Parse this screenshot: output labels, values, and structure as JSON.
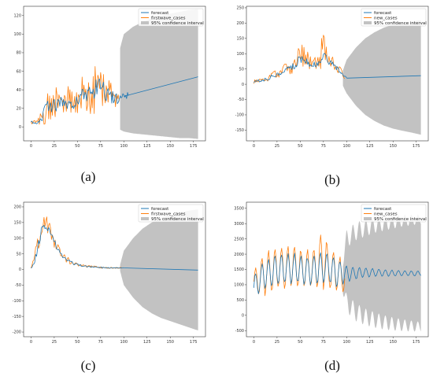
{
  "chart_data": [
    {
      "caption": "(a)",
      "type": "line",
      "xlim": [
        -8,
        188
      ],
      "ylim": [
        -15,
        130
      ],
      "xticks": [
        0,
        25,
        50,
        75,
        100,
        125,
        150,
        175
      ],
      "yticks": [
        0,
        20,
        40,
        60,
        80,
        100,
        120
      ],
      "legend_position": "top-right",
      "legend": [
        "forecast",
        "firstwave_cases",
        "95% confidence interval"
      ],
      "series": [
        {
          "name": "firstwave_cases",
          "color": "#ff7f0e",
          "style": "noisy",
          "x": [
            0,
            5,
            10,
            15,
            20,
            25,
            30,
            35,
            40,
            45,
            50,
            55,
            60,
            65,
            70,
            75,
            80,
            85,
            90,
            95
          ],
          "values": [
            5,
            4,
            8,
            18,
            26,
            24,
            28,
            26,
            30,
            28,
            32,
            34,
            38,
            36,
            42,
            48,
            36,
            34,
            32,
            30
          ],
          "amplitude": [
            3,
            4,
            8,
            15,
            20,
            18,
            16,
            14,
            16,
            14,
            18,
            20,
            26,
            24,
            28,
            26,
            20,
            16,
            12,
            10
          ]
        },
        {
          "name": "forecast",
          "color": "#1f77b4",
          "style": "noisy",
          "x": [
            0,
            5,
            10,
            15,
            20,
            25,
            30,
            35,
            40,
            45,
            50,
            55,
            60,
            65,
            70,
            75,
            80,
            85,
            90,
            95,
            100,
            105
          ],
          "values": [
            5,
            5,
            8,
            17,
            24,
            23,
            26,
            25,
            28,
            26,
            30,
            32,
            36,
            34,
            40,
            44,
            36,
            33,
            31,
            30,
            33,
            35
          ],
          "amplitude": [
            2,
            2,
            4,
            7,
            8,
            8,
            7,
            7,
            8,
            7,
            9,
            9,
            10,
            10,
            11,
            10,
            9,
            7,
            6,
            5,
            5,
            3
          ]
        },
        {
          "name": "forecast",
          "color": "#1f77b4",
          "style": "line",
          "x": [
            100,
            180
          ],
          "values": [
            33,
            54
          ]
        }
      ],
      "confidence_interval": {
        "color": "#c2c2c2",
        "x": [
          96,
          100,
          110,
          120,
          130,
          140,
          150,
          160,
          170,
          180
        ],
        "upper": [
          85,
          100,
          108,
          113,
          117,
          120,
          122,
          124,
          126,
          127
        ],
        "lower": [
          -3,
          -5,
          -7,
          -8,
          -9,
          -10,
          -11,
          -12,
          -12,
          -13
        ]
      }
    },
    {
      "caption": "(b)",
      "type": "line",
      "xlim": [
        -8,
        188
      ],
      "ylim": [
        -185,
        255
      ],
      "xticks": [
        0,
        25,
        50,
        75,
        100,
        125,
        150,
        175
      ],
      "yticks": [
        -150,
        -100,
        -50,
        0,
        50,
        100,
        150,
        200,
        250
      ],
      "legend_position": "top-right",
      "legend": [
        "forecast",
        "new_cases",
        "95% confidence interval"
      ],
      "series": [
        {
          "name": "new_cases",
          "color": "#ff7f0e",
          "style": "noisy",
          "x": [
            0,
            5,
            10,
            15,
            20,
            25,
            30,
            35,
            40,
            45,
            50,
            55,
            60,
            65,
            70,
            75,
            80,
            85,
            90,
            95,
            98
          ],
          "values": [
            8,
            12,
            15,
            20,
            28,
            35,
            42,
            50,
            55,
            70,
            95,
            90,
            70,
            68,
            75,
            120,
            80,
            70,
            55,
            35,
            25
          ],
          "amplitude": [
            6,
            8,
            10,
            12,
            14,
            16,
            18,
            20,
            22,
            28,
            45,
            35,
            25,
            25,
            30,
            70,
            30,
            25,
            18,
            12,
            8
          ]
        },
        {
          "name": "forecast",
          "color": "#1f77b4",
          "style": "noisy",
          "x": [
            0,
            5,
            10,
            15,
            20,
            25,
            30,
            35,
            40,
            45,
            50,
            55,
            60,
            65,
            70,
            75,
            80,
            85,
            90,
            95,
            100
          ],
          "values": [
            8,
            11,
            14,
            19,
            26,
            33,
            40,
            48,
            53,
            65,
            85,
            82,
            66,
            64,
            70,
            100,
            75,
            66,
            52,
            33,
            22
          ],
          "amplitude": [
            3,
            4,
            5,
            6,
            7,
            8,
            9,
            10,
            10,
            12,
            14,
            12,
            10,
            10,
            11,
            14,
            10,
            9,
            7,
            5,
            3
          ]
        },
        {
          "name": "forecast",
          "color": "#1f77b4",
          "style": "line",
          "x": [
            100,
            180
          ],
          "values": [
            20,
            28
          ]
        }
      ],
      "confidence_interval": {
        "color": "#c2c2c2",
        "x": [
          96,
          100,
          110,
          120,
          130,
          140,
          150,
          160,
          170,
          180
        ],
        "upper": [
          45,
          80,
          120,
          150,
          170,
          185,
          195,
          200,
          205,
          210
        ],
        "lower": [
          -5,
          -30,
          -70,
          -100,
          -120,
          -135,
          -145,
          -152,
          -158,
          -165
        ]
      }
    },
    {
      "caption": "(c)",
      "type": "line",
      "xlim": [
        -8,
        188
      ],
      "ylim": [
        -215,
        215
      ],
      "xticks": [
        0,
        25,
        50,
        75,
        100,
        125,
        150,
        175
      ],
      "yticks": [
        -200,
        -150,
        -100,
        -50,
        0,
        50,
        100,
        150,
        200
      ],
      "legend_position": "top-right",
      "legend": [
        "forecast",
        "firstwave_cases",
        "95% confidence interval"
      ],
      "series": [
        {
          "name": "firstwave_cases",
          "color": "#ff7f0e",
          "style": "noisy",
          "x": [
            0,
            3,
            6,
            10,
            13,
            16,
            20,
            25,
            30,
            35,
            40,
            45,
            50,
            55,
            60,
            65,
            70,
            75,
            80,
            85,
            90,
            95,
            98
          ],
          "values": [
            5,
            20,
            60,
            120,
            160,
            150,
            130,
            90,
            60,
            40,
            30,
            20,
            15,
            12,
            10,
            8,
            8,
            6,
            6,
            5,
            5,
            5,
            5
          ],
          "amplitude": [
            5,
            15,
            30,
            40,
            30,
            25,
            25,
            20,
            15,
            12,
            10,
            8,
            6,
            5,
            4,
            4,
            3,
            3,
            3,
            2,
            2,
            2,
            2
          ]
        },
        {
          "name": "forecast",
          "color": "#1f77b4",
          "style": "noisy",
          "x": [
            0,
            3,
            6,
            10,
            13,
            16,
            20,
            25,
            30,
            35,
            40,
            45,
            50,
            55,
            60,
            65,
            70,
            75,
            80,
            85,
            90,
            95,
            100
          ],
          "values": [
            5,
            18,
            55,
            110,
            140,
            140,
            125,
            88,
            58,
            40,
            30,
            20,
            15,
            12,
            10,
            8,
            8,
            6,
            6,
            5,
            5,
            5,
            5
          ],
          "amplitude": [
            3,
            8,
            15,
            18,
            15,
            12,
            12,
            10,
            8,
            6,
            5,
            4,
            3,
            3,
            2,
            2,
            2,
            2,
            2,
            1,
            1,
            1,
            1
          ]
        },
        {
          "name": "forecast",
          "color": "#1f77b4",
          "style": "line",
          "x": [
            100,
            180
          ],
          "values": [
            5,
            -2
          ]
        }
      ],
      "confidence_interval": {
        "color": "#c2c2c2",
        "x": [
          96,
          100,
          110,
          120,
          130,
          140,
          150,
          160,
          170,
          180
        ],
        "upper": [
          15,
          60,
          100,
          130,
          150,
          165,
          175,
          182,
          188,
          192
        ],
        "lower": [
          -5,
          -50,
          -90,
          -120,
          -140,
          -155,
          -165,
          -175,
          -185,
          -195
        ]
      }
    },
    {
      "caption": "(d)",
      "type": "line",
      "xlim": [
        -8,
        188
      ],
      "ylim": [
        -700,
        3700
      ],
      "xticks": [
        0,
        25,
        50,
        75,
        100,
        125,
        150,
        175
      ],
      "yticks": [
        -500,
        0,
        500,
        1000,
        1500,
        2000,
        2500,
        3000,
        3500
      ],
      "legend_position": "top-right",
      "legend": [
        "forecast",
        "new_cases",
        "95% confidence interval"
      ],
      "series": [
        {
          "name": "new_cases",
          "color": "#ff7f0e",
          "style": "periodic",
          "x": [
            0,
            10,
            20,
            30,
            40,
            50,
            60,
            70,
            75,
            80,
            90,
            98
          ],
          "values": [
            1100,
            1300,
            1500,
            1550,
            1600,
            1550,
            1500,
            1600,
            2000,
            1500,
            1400,
            1200
          ],
          "amplitude": [
            400,
            700,
            800,
            750,
            750,
            700,
            650,
            800,
            1200,
            800,
            700,
            500
          ],
          "period": 7
        },
        {
          "name": "forecast",
          "color": "#1f77b4",
          "style": "periodic",
          "x": [
            0,
            10,
            20,
            30,
            40,
            50,
            60,
            70,
            80,
            90,
            100,
            110,
            120,
            130,
            140,
            150,
            160,
            170,
            180
          ],
          "values": [
            900,
            1300,
            1450,
            1500,
            1550,
            1500,
            1450,
            1550,
            1550,
            1400,
            1350,
            1380,
            1400,
            1400,
            1390,
            1380,
            1380,
            1370,
            1370
          ],
          "amplitude": [
            450,
            500,
            550,
            550,
            550,
            500,
            500,
            550,
            550,
            500,
            300,
            220,
            170,
            140,
            120,
            110,
            100,
            95,
            90
          ],
          "period": 7
        }
      ],
      "confidence_interval": {
        "color": "#c2c2c2",
        "style": "periodic",
        "period": 7,
        "x": [
          96,
          100,
          110,
          120,
          130,
          140,
          150,
          160,
          170,
          180
        ],
        "upper": [
          1800,
          2500,
          2750,
          2850,
          2950,
          3000,
          3050,
          3100,
          3120,
          3150
        ],
        "lower": [
          900,
          400,
          100,
          -50,
          -150,
          -230,
          -280,
          -320,
          -350,
          -370
        ],
        "ripple": [
          200,
          300,
          300,
          280,
          260,
          240,
          220,
          200,
          180,
          160
        ]
      }
    }
  ]
}
